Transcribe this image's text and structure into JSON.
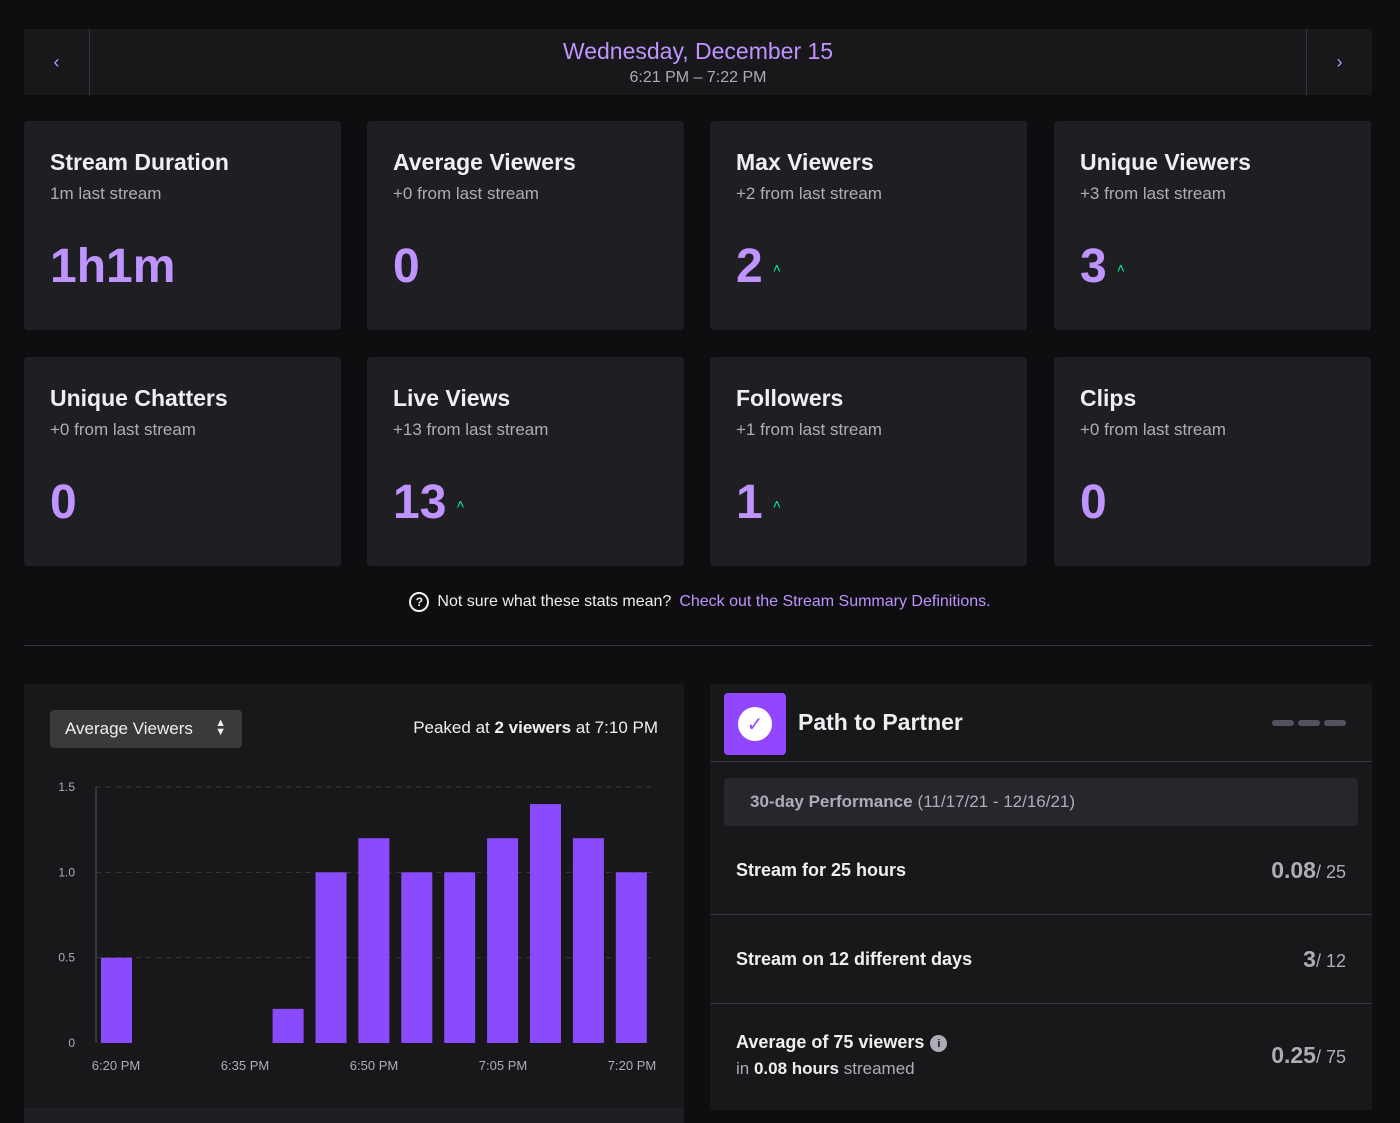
{
  "header": {
    "date": "Wednesday, December 15",
    "time_range": "6:21 PM – 7:22 PM",
    "prev_icon": "chevron-left-icon",
    "next_icon": "chevron-right-icon"
  },
  "stats": [
    {
      "title": "Stream Duration",
      "sub": "1m last stream",
      "value": "1h1m",
      "up": ""
    },
    {
      "title": "Average Viewers",
      "sub": "+0 from last stream",
      "value": "0",
      "up": ""
    },
    {
      "title": "Max Viewers",
      "sub": "+2 from last stream",
      "value": "2",
      "up": "˄"
    },
    {
      "title": "Unique Viewers",
      "sub": "+3 from last stream",
      "value": "3",
      "up": "˄"
    },
    {
      "title": "Unique Chatters",
      "sub": "+0 from last stream",
      "value": "0",
      "up": ""
    },
    {
      "title": "Live Views",
      "sub": "+13 from last stream",
      "value": "13",
      "up": "˄"
    },
    {
      "title": "Followers",
      "sub": "+1 from last stream",
      "value": "1",
      "up": "˄"
    },
    {
      "title": "Clips",
      "sub": "+0 from last stream",
      "value": "0",
      "up": ""
    }
  ],
  "help": {
    "text": "Not sure what these stats mean?",
    "link": "Check out the Stream Summary Definitions."
  },
  "chart_panel": {
    "select_label": "Average Viewers",
    "peak_prefix": "Peaked at",
    "peak_bold": "2 viewers",
    "peak_suffix": "at 7:10 PM"
  },
  "chart_data": {
    "type": "bar",
    "x_tick_labels": [
      "6:20 PM",
      "6:35 PM",
      "6:50 PM",
      "7:05 PM",
      "7:20 PM"
    ],
    "y_tick_labels": [
      "0",
      "0.5",
      "1.0",
      "1.5"
    ],
    "ylim": [
      0,
      1.5
    ],
    "bars": [
      {
        "slot": 0,
        "value": 0.5
      },
      {
        "slot": 4,
        "value": 0.2
      },
      {
        "slot": 5,
        "value": 1.0
      },
      {
        "slot": 6,
        "value": 1.2
      },
      {
        "slot": 7,
        "value": 1.0
      },
      {
        "slot": 8,
        "value": 1.0
      },
      {
        "slot": 9,
        "value": 1.2
      },
      {
        "slot": 10,
        "value": 1.4
      },
      {
        "slot": 11,
        "value": 1.2
      },
      {
        "slot": 12,
        "value": 1.0
      }
    ],
    "bar_color": "#8a4bff",
    "grid": true
  },
  "partner": {
    "title": "Path to Partner",
    "badge_icon": "check-icon",
    "perf_bold": "30-day Performance",
    "perf_range": "(11/17/21 - 12/16/21)",
    "goals": [
      {
        "label": "Stream for 25 hours",
        "value": "0.08",
        "target": "/ 25"
      },
      {
        "label": "Stream on 12 different days",
        "value": "3",
        "target": "/ 12"
      },
      {
        "label": "Average of 75 viewers",
        "sub_prefix": "in",
        "sub_bold": "0.08 hours",
        "sub_suffix": "streamed",
        "value": "0.25",
        "target": "/ 75"
      }
    ]
  }
}
